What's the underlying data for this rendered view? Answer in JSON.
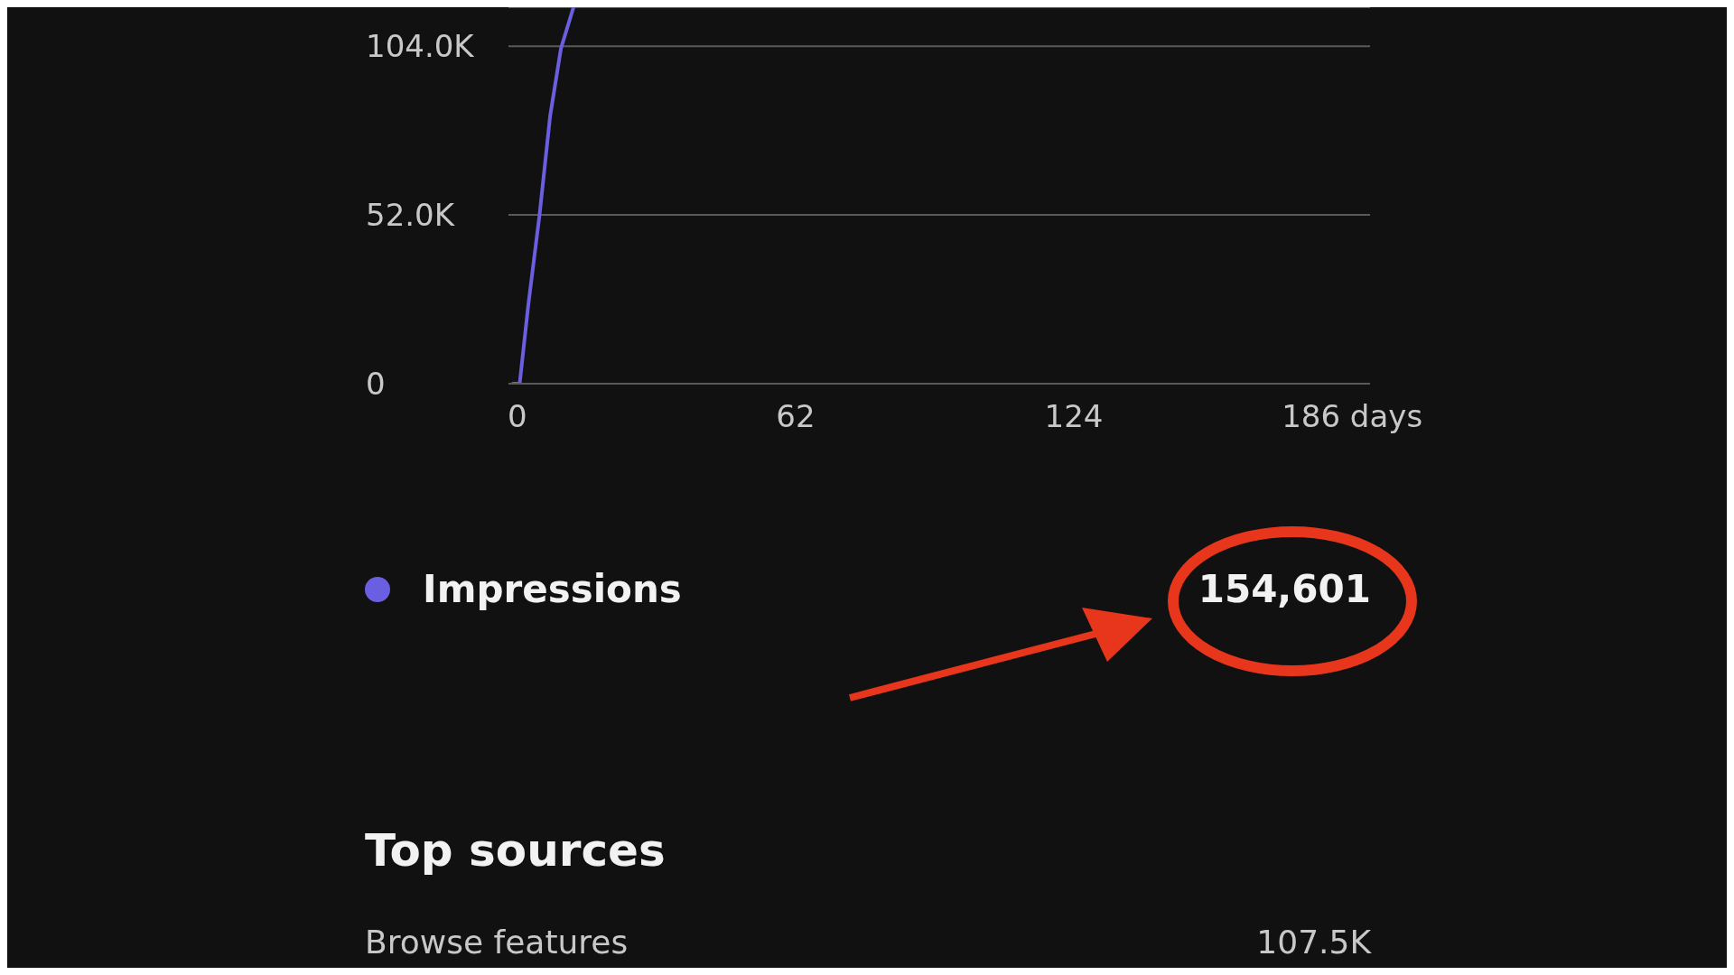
{
  "chart_data": {
    "type": "line",
    "x": [
      -1,
      0.5,
      2.4,
      4.9,
      7.3,
      9.7,
      12.5
    ],
    "series": [
      {
        "name": "Impressions",
        "color": "#6a5fe0",
        "values": [
          0,
          0,
          24000,
          51700,
          82600,
          103300,
          116000
        ]
      }
    ],
    "xlim": [
      -2,
      190
    ],
    "xticks": [
      0,
      62,
      124,
      {
        "value": 186,
        "label": "186 days"
      }
    ],
    "ylim": [
      0,
      116000
    ],
    "yticks": [
      0,
      {
        "value": 52000,
        "label": "52.0K"
      },
      {
        "value": 104000,
        "label": "104.0K"
      }
    ],
    "grid": "y",
    "legend": "bottom",
    "marker": "none",
    "line_style": "solid",
    "annotations": [
      "154,601",
      "Top sources",
      "Browse features",
      "107.5K"
    ]
  }
}
